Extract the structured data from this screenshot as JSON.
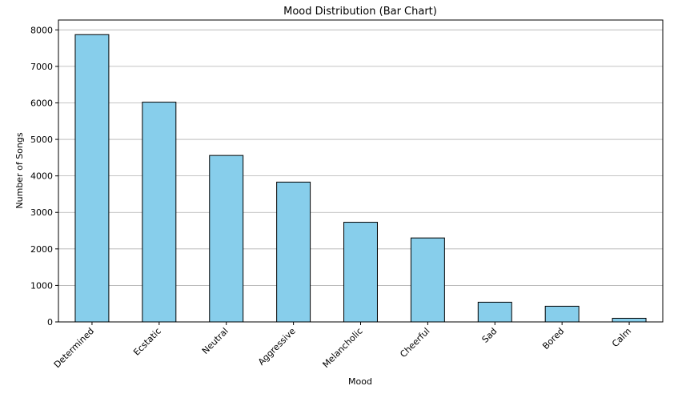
{
  "chart_data": {
    "type": "bar",
    "title": "Mood Distribution (Bar Chart)",
    "xlabel": "Mood",
    "ylabel": "Number of Songs",
    "categories": [
      "Determined",
      "Ecstatic",
      "Neutral",
      "Aggressive",
      "Melancholic",
      "Cheerful",
      "Sad",
      "Bored",
      "Calm"
    ],
    "values": [
      7870,
      6020,
      4560,
      3830,
      2730,
      2300,
      540,
      430,
      100
    ],
    "ylim": [
      0,
      8270
    ],
    "yticks": [
      0,
      1000,
      2000,
      3000,
      4000,
      5000,
      6000,
      7000,
      8000
    ],
    "grid": "y",
    "bar_color": "#87ceeb",
    "edge_color": "#000000",
    "grid_color": "#b0b0b0"
  }
}
